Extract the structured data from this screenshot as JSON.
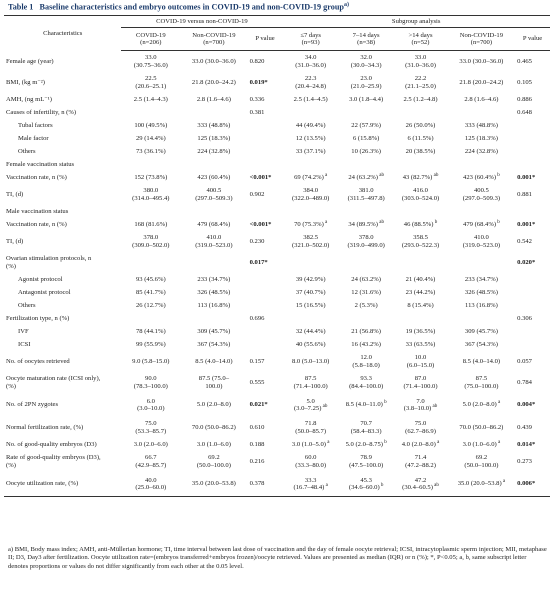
{
  "caption": {
    "label": "Table 1",
    "title": "Baseline characteristics and embryo outcomes in COVID-19 and non-COVID-19 group",
    "sup": "a)"
  },
  "headers": {
    "characteristics": "Characteristics",
    "group1": "COVID-19 versus non-COVID-19",
    "group2": "Subgroup analysis",
    "cols": [
      "COVID-19 (n=206)",
      "Non-COVID-19 (n=700)",
      "P value",
      "≤7 days (n=93)",
      "7–14 days (n=38)",
      ">14 days (n=52)",
      "Non-COVID-19 (n=700)",
      "P value"
    ]
  },
  "rows": [
    {
      "label": "Female age (year)",
      "indent": false,
      "h": "t2",
      "cells": [
        "33.0\n(30.75–36.0)",
        "33.0 (30.0–36.0)",
        "0.820",
        "34.0\n(31.0–36.0)",
        "32.0\n(30.0–34.3)",
        "33.0\n(31.0–36.0)",
        "33.0 (30.0–36.0)",
        "0.465"
      ]
    },
    {
      "label": "BMI, (kg m⁻²)",
      "indent": false,
      "h": "t2",
      "cells": [
        "22.5\n(20.6–25.1)",
        "21.8 (20.0–24.2)",
        "0.019*",
        "22.3\n(20.4–24.8)",
        "23.0\n(21.0–25.9)",
        "22.2\n(21.1–25.0)",
        "21.8 (20.0–24.2)",
        "0.105"
      ],
      "bold": [
        2
      ]
    },
    {
      "label": "AMH, (ng mL⁻¹)",
      "indent": false,
      "h": "t1",
      "cells": [
        "2.5 (1.4–4.3)",
        "2.8 (1.6–4.6)",
        "0.336",
        "2.5 (1.4–4.5)",
        "3.0 (1.8–4.4)",
        "2.5 (1.2–4.8)",
        "2.8 (1.6–4.6)",
        "0.886"
      ]
    },
    {
      "label": "Causes of infertility, n (%)",
      "indent": false,
      "h": "t1",
      "cells": [
        "",
        "",
        "0.381",
        "",
        "",
        "",
        "",
        "0.648"
      ]
    },
    {
      "label": "Tubal factors",
      "indent": true,
      "h": "t1",
      "cells": [
        "100 (49.5%)",
        "333 (48.8%)",
        "",
        "44 (49.4%)",
        "22 (57.9%)",
        "26 (50.0%)",
        "333 (48.8%)",
        ""
      ]
    },
    {
      "label": "Male factor",
      "indent": true,
      "h": "t1",
      "cells": [
        "29 (14.4%)",
        "125 (18.3%)",
        "",
        "12 (13.5%)",
        "6 (15.8%)",
        "6 (11.5%)",
        "125 (18.3%)",
        ""
      ]
    },
    {
      "label": "Others",
      "indent": true,
      "h": "t1",
      "cells": [
        "73 (36.1%)",
        "224 (32.8%)",
        "",
        "33 (37.1%)",
        "10 (26.3%)",
        "20 (38.5%)",
        "224 (32.8%)",
        ""
      ]
    },
    {
      "label": "Female vaccination status",
      "indent": false,
      "h": "t1",
      "cells": [
        "",
        "",
        "",
        "",
        "",
        "",
        "",
        ""
      ]
    },
    {
      "label": "Vaccination rate, n (%)",
      "indent": false,
      "h": "t1",
      "cells": [
        "152 (73.8%)",
        "423 (60.4%)",
        "<0.001*",
        "69 (74.2%)",
        "24 (63.2%)",
        "43 (82.7%)",
        "423 (60.4%)",
        "0.001*"
      ],
      "bold": [
        2,
        7
      ],
      "sups": {
        "3": "a",
        "4": "ab",
        "5": "ab",
        "6": "b"
      }
    },
    {
      "label": "TI, (d)",
      "indent": false,
      "h": "t2",
      "cells": [
        "380.0\n(314.0–495.4)",
        "400.5\n(297.0–509.3)",
        "0.902",
        "384.0\n(322.0–489.0)",
        "381.0\n(311.5–497.8)",
        "416.0\n(303.0–524.0)",
        "400.5\n(297.0–509.3)",
        "0.881"
      ]
    },
    {
      "label": "Male vaccination status",
      "indent": false,
      "h": "t1",
      "cells": [
        "",
        "",
        "",
        "",
        "",
        "",
        "",
        ""
      ]
    },
    {
      "label": "Vaccination rate, n (%)",
      "indent": false,
      "h": "t1",
      "cells": [
        "168 (81.6%)",
        "479 (68.4%)",
        "<0.001*",
        "70 (75.3%)",
        "34 (89.5%)",
        "46 (88.5%)",
        "479 (68.4%)",
        "0.001*"
      ],
      "bold": [
        2,
        7
      ],
      "sups": {
        "3": "a",
        "4": "ab",
        "5": "b",
        "6": "b"
      }
    },
    {
      "label": "TI, (d)",
      "indent": false,
      "h": "t2",
      "cells": [
        "378.0\n(309.0–502.0)",
        "410.0\n(319.0–523.0)",
        "0.230",
        "382.5\n(321.0–502.0)",
        "378.0\n(319.0–499.0)",
        "358.5\n(293.0–522.3)",
        "410.0\n(319.0–523.0)",
        "0.542"
      ]
    },
    {
      "label": "Ovarian stimulation protocols, n\n(%)",
      "indent": false,
      "h": "t2",
      "cells": [
        "",
        "",
        "0.017*",
        "",
        "",
        "",
        "",
        "0.020*"
      ],
      "bold": [
        2,
        7
      ]
    },
    {
      "label": "Agonist protocol",
      "indent": true,
      "h": "t1",
      "cells": [
        "93 (45.6%)",
        "233 (34.7%)",
        "",
        "39 (42.9%)",
        "24 (63.2%)",
        "21 (40.4%)",
        "233 (34.7%)",
        ""
      ]
    },
    {
      "label": "Antagonist protocol",
      "indent": true,
      "h": "t1",
      "cells": [
        "85 (41.7%)",
        "326 (48.5%)",
        "",
        "37 (40.7%)",
        "12 (31.6%)",
        "23 (44.2%)",
        "326 (48.5%)",
        ""
      ]
    },
    {
      "label": "Others",
      "indent": true,
      "h": "t1",
      "cells": [
        "26 (12.7%)",
        "113 (16.8%)",
        "",
        "15 (16.5%)",
        "2 (5.3%)",
        "8 (15.4%)",
        "113 (16.8%)",
        ""
      ]
    },
    {
      "label": "Fertilization type, n (%)",
      "indent": false,
      "h": "t1",
      "cells": [
        "",
        "",
        "0.696",
        "",
        "",
        "",
        "",
        "0.306"
      ]
    },
    {
      "label": "IVF",
      "indent": true,
      "h": "t1",
      "cells": [
        "78 (44.1%)",
        "309 (45.7%)",
        "",
        "32 (44.4%)",
        "21 (56.8%)",
        "19 (36.5%)",
        "309 (45.7%)",
        ""
      ]
    },
    {
      "label": "ICSI",
      "indent": true,
      "h": "t1",
      "cells": [
        "99 (55.9%)",
        "367 (54.3%)",
        "",
        "40 (55.6%)",
        "16 (43.2%)",
        "33 (63.5%)",
        "367 (54.3%)",
        ""
      ]
    },
    {
      "label": "No. of oocytes retrieved",
      "indent": false,
      "h": "t2",
      "cells": [
        "9.0 (5.8–15.0)",
        "8.5 (4.0–14.0)",
        "0.157",
        "8.0 (5.0–13.0)",
        "12.0\n(5.8–18.0)",
        "10.0\n(6.0–15.0)",
        "8.5 (4.0–14.0)",
        "0.057"
      ]
    },
    {
      "label": "Oocyte maturation rate (ICSI only),\n(%)",
      "indent": false,
      "h": "t2",
      "cells": [
        "90.0\n(78.3–100.0)",
        "87.5 (75.0–\n100.0)",
        "0.555",
        "87.5\n(71.4–100.0)",
        "93.3\n(84.4–100.0)",
        "87.0\n(71.4–100.0)",
        "87.5\n(75.0–100.0)",
        "0.784"
      ]
    },
    {
      "label": "No. of 2PN zygotes",
      "indent": false,
      "h": "t3",
      "cells": [
        "6.0\n(3.0–10.0)",
        "5.0 (2.0–8.0)",
        "0.021*",
        "5.0\n(3.0–7.25)",
        "8.5 (4.0–11.0)",
        "7.0\n(3.8–10.0)",
        "5.0 (2.0–8.0)",
        "0.004*"
      ],
      "bold": [
        2,
        7
      ],
      "sups": {
        "3": "ab",
        "4": "b",
        "5": "ab",
        "6": "a"
      }
    },
    {
      "label": "Normal fertilization rate, (%)",
      "indent": false,
      "h": "t2",
      "cells": [
        "75.0\n(53.3–85.7)",
        "70.0 (50.0–86.2)",
        "0.610",
        "71.8\n(50.0–85.7)",
        "70.7\n(58.4–83.3)",
        "75.0\n(62.7–86.9)",
        "70.0 (50.0–86.2)",
        "0.439"
      ]
    },
    {
      "label": "No. of good-quality embryos (D3)",
      "indent": false,
      "h": "t1",
      "cells": [
        "3.0 (2.0–6.0)",
        "3.0 (1.0–6.0)",
        "0.188",
        "3.0 (1.0–5.0)",
        "5.0 (2.0–8.75)",
        "4.0 (2.0–8.0)",
        "3.0 (1.0–6.0)",
        "0.014*"
      ],
      "bold": [
        7
      ],
      "sups": {
        "3": "a",
        "4": "b",
        "5": "a",
        "6": "a"
      }
    },
    {
      "label": "Rate of good-quality embryos (D3),\n(%)",
      "indent": false,
      "h": "t2",
      "cells": [
        "66.7\n(42.9–85.7)",
        "69.2\n(50.0–100.0)",
        "0.216",
        "60.0\n(33.3–80.0)",
        "78.9\n(47.5–100.0)",
        "71.4\n(47.2–88.2)",
        "69.2\n(50.0–100.0)",
        "0.273"
      ]
    },
    {
      "label": "Oocyte utilization rate, (%)",
      "indent": false,
      "h": "t3",
      "cells": [
        "40.0\n(25.0–60.0)",
        "35.0 (20.0–53.8)",
        "0.378",
        "33.3\n(16.7–48.4)",
        "45.3\n(34.6–60.0)",
        "47.2\n(30.4–60.5)",
        "35.0 (20.0–53.8)",
        "0.006*"
      ],
      "bold": [
        7
      ],
      "sups": {
        "3": "a",
        "4": "b",
        "5": "ab",
        "6": "a"
      }
    }
  ],
  "footnote": "a) BMI, Body mass index; AMH, anti-Müllerian hormone; TI, time interval between last dose of vaccination and the day of female oocyte retrieval; ICSI, intracytoplasmic sperm injection; MII, metaphase II; D3, Day3 after fertilization. Oocyte utilization rate=(embryos transferred+embryos frozen)/oocyte retrieved. Values are presented as median (IQR) or n (%); *, P<0.05; a, b, same subscript letter denotes proportions or values do not differ significantly from each other at the 0.05 level."
}
